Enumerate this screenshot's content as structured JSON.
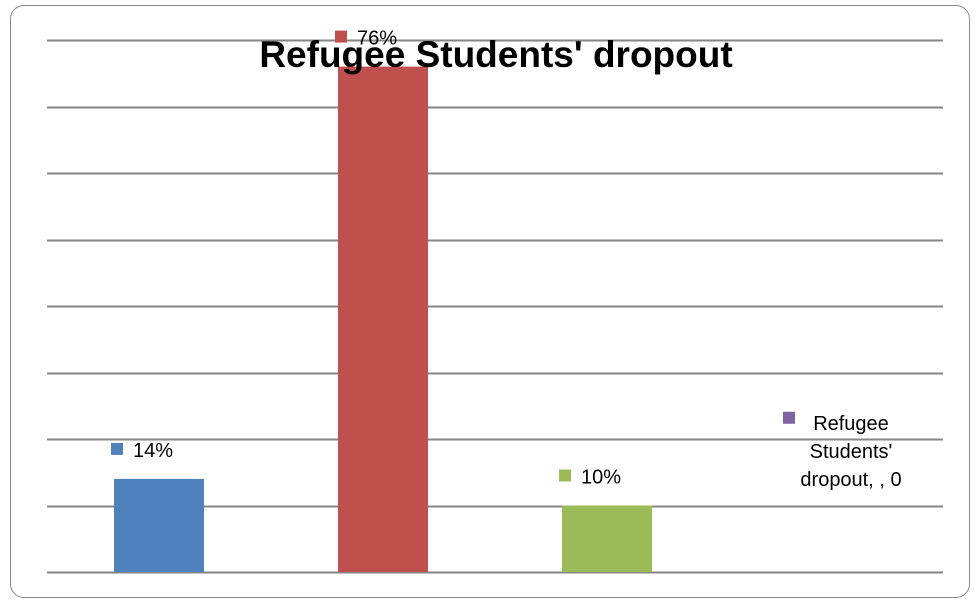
{
  "chart_data": {
    "type": "bar",
    "title": "Refugee Students' dropout",
    "xlabel": "",
    "ylabel": "",
    "grid": true,
    "ylim": [
      0,
      0.8
    ],
    "ymax": 0.8,
    "series": [
      {
        "value": 0.14,
        "label": "14%",
        "color": "#4f81bd"
      },
      {
        "value": 0.76,
        "label": "76%",
        "color": "#c0504d"
      },
      {
        "value": 0.1,
        "label": "10%",
        "color": "#9bbb59"
      },
      {
        "value": 0,
        "label": "Refugee Students' dropout, , 0",
        "label_lines": [
          "Refugee",
          "Students'",
          "dropout, , 0"
        ],
        "color": "#8064a2"
      }
    ]
  }
}
